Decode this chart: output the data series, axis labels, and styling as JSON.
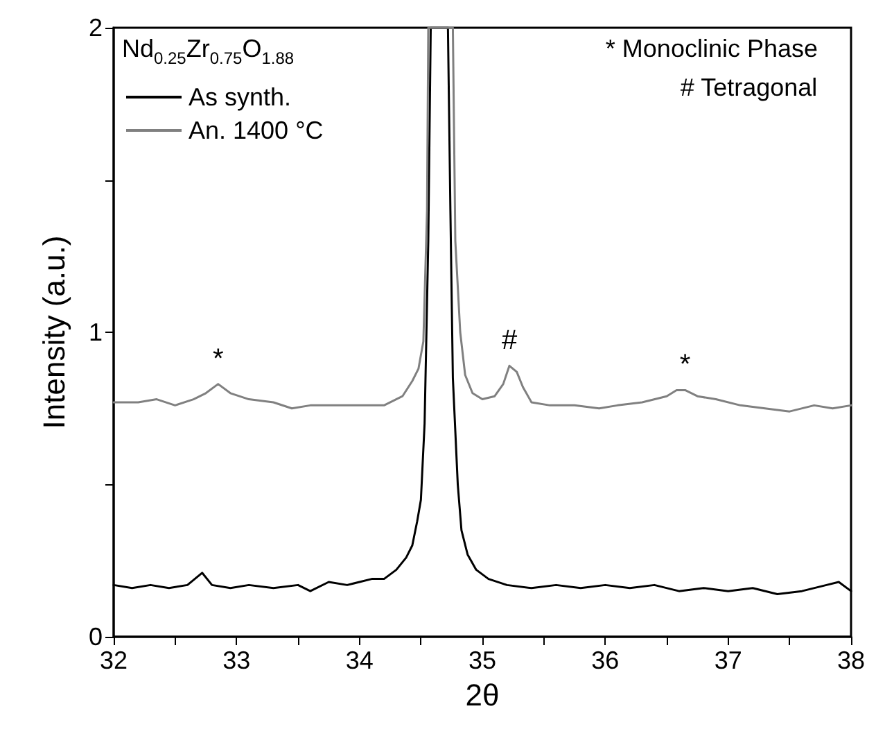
{
  "chart_data": {
    "type": "line",
    "xlabel": "2θ",
    "ylabel": "Intensity (a.u.)",
    "legend_title": "Nd$_{0.25}$Zr$_{0.75}$O$_{1.88}$",
    "legend": "top left",
    "line_style": "solid",
    "grid": false,
    "xlim": [
      32,
      38
    ],
    "xticks": [
      32,
      {
        "value": 32.5,
        "label": null
      },
      33,
      {
        "value": 33.5,
        "label": null
      },
      34,
      {
        "value": 34.5,
        "label": null
      },
      35,
      {
        "value": 35.5,
        "label": null
      },
      36,
      {
        "value": 36.5,
        "label": null
      },
      37,
      {
        "value": 37.5,
        "label": null
      },
      38
    ],
    "ylim": [
      0,
      2
    ],
    "yticks": [
      0,
      {
        "value": 0.5,
        "label": null
      },
      1,
      {
        "value": 1.5,
        "label": null
      },
      2
    ],
    "series": [
      {
        "name": "As synth.",
        "color": "#000000",
        "x": [
          32.0,
          32.15,
          32.3,
          32.45,
          32.6,
          32.72,
          32.8,
          32.95,
          33.1,
          33.3,
          33.5,
          33.6,
          33.75,
          33.9,
          34.0,
          34.1,
          34.2,
          34.3,
          34.38,
          34.43,
          34.47,
          34.5,
          34.53,
          34.56,
          34.58,
          34.72,
          34.74,
          34.76,
          34.8,
          34.83,
          34.88,
          34.95,
          35.05,
          35.2,
          35.4,
          35.6,
          35.8,
          36.0,
          36.2,
          36.4,
          36.6,
          36.8,
          37.0,
          37.2,
          37.4,
          37.6,
          37.8,
          37.9,
          38.0
        ],
        "values": [
          0.17,
          0.16,
          0.17,
          0.16,
          0.17,
          0.21,
          0.17,
          0.16,
          0.17,
          0.16,
          0.17,
          0.15,
          0.18,
          0.17,
          0.18,
          0.19,
          0.19,
          0.22,
          0.26,
          0.3,
          0.38,
          0.45,
          0.7,
          1.3,
          2,
          2,
          1.4,
          0.85,
          0.5,
          0.35,
          0.27,
          0.22,
          0.19,
          0.17,
          0.16,
          0.17,
          0.16,
          0.17,
          0.16,
          0.17,
          0.15,
          0.16,
          0.15,
          0.16,
          0.14,
          0.15,
          0.17,
          0.18,
          0.15
        ]
      },
      {
        "name": "An. 1400 °C",
        "color": "#808080",
        "x": [
          32.0,
          32.2,
          32.35,
          32.5,
          32.65,
          32.75,
          32.85,
          32.95,
          33.1,
          33.3,
          33.45,
          33.6,
          33.8,
          34.0,
          34.2,
          34.35,
          34.43,
          34.48,
          34.52,
          34.55,
          34.56,
          34.76,
          34.78,
          34.82,
          34.86,
          34.92,
          35.0,
          35.1,
          35.17,
          35.22,
          35.28,
          35.33,
          35.4,
          35.55,
          35.75,
          35.95,
          36.1,
          36.3,
          36.5,
          36.58,
          36.65,
          36.75,
          36.9,
          37.1,
          37.3,
          37.5,
          37.7,
          37.85,
          38.0
        ],
        "values": [
          0.77,
          0.77,
          0.78,
          0.76,
          0.78,
          0.8,
          0.83,
          0.8,
          0.78,
          0.77,
          0.75,
          0.76,
          0.76,
          0.76,
          0.76,
          0.79,
          0.84,
          0.88,
          0.97,
          1.4,
          2,
          2,
          1.3,
          1.0,
          0.86,
          0.8,
          0.78,
          0.79,
          0.83,
          0.89,
          0.87,
          0.82,
          0.77,
          0.76,
          0.76,
          0.75,
          0.76,
          0.77,
          0.79,
          0.81,
          0.81,
          0.79,
          0.78,
          0.76,
          0.75,
          0.74,
          0.76,
          0.75,
          0.76
        ]
      }
    ],
    "annotations": [
      {
        "text": "*",
        "x": 32.85,
        "y": 0.83
      },
      {
        "text": "#",
        "x": 35.22,
        "y": 0.89
      },
      {
        "text": "*",
        "x": 36.65,
        "y": 0.81
      },
      "* Monoclinic Phase",
      "# Tetragonal"
    ]
  }
}
